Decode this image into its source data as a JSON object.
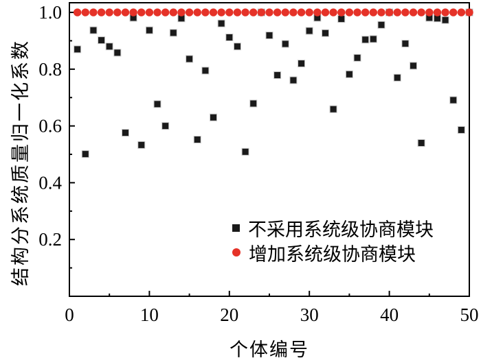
{
  "axes": {
    "x_title": "个体编号",
    "y_title": "结构分系统质量归一化系数"
  },
  "legend": {
    "series1": "不采用系统级协商模块",
    "series2": "增加系统级协商模块"
  },
  "colors": {
    "black_marker": "#1a1a1a",
    "red_marker": "#e53228",
    "axis": "#000000",
    "background": "#ffffff"
  },
  "chart_data": {
    "type": "scatter",
    "title": "",
    "xlabel": "个体编号",
    "ylabel": "结构分系统质量归一化系数",
    "xlim": [
      0,
      50
    ],
    "ylim": [
      0,
      1.034
    ],
    "grid": false,
    "legend_position": "inside lower-right",
    "x_major_ticks": [
      0,
      10,
      20,
      30,
      40,
      50
    ],
    "x_minor_ticks": [
      5,
      15,
      25,
      35,
      45
    ],
    "y_major_ticks": [
      0.2,
      0.4,
      0.6,
      0.8,
      1.0
    ],
    "y_minor_ticks": [
      0.1,
      0.3,
      0.5,
      0.7,
      0.9
    ],
    "x": [
      1,
      2,
      3,
      4,
      5,
      6,
      7,
      8,
      9,
      10,
      11,
      12,
      13,
      14,
      15,
      16,
      17,
      18,
      19,
      20,
      21,
      22,
      23,
      24,
      25,
      26,
      27,
      28,
      29,
      30,
      31,
      32,
      33,
      34,
      35,
      36,
      37,
      38,
      39,
      40,
      41,
      42,
      43,
      44,
      45,
      46,
      47,
      48,
      49,
      50
    ],
    "series": [
      {
        "name": "不采用系统级协商模块",
        "marker": "square",
        "color": "#1a1a1a",
        "values": [
          0.87,
          0.501,
          0.937,
          0.902,
          0.88,
          0.858,
          0.576,
          0.981,
          0.533,
          0.937,
          0.677,
          0.6,
          0.928,
          0.979,
          0.836,
          0.552,
          0.795,
          0.63,
          0.961,
          0.912,
          0.88,
          0.509,
          0.679,
          1.0,
          0.919,
          0.779,
          0.889,
          0.761,
          0.82,
          0.935,
          0.981,
          0.927,
          0.659,
          0.977,
          0.782,
          0.84,
          0.904,
          0.906,
          0.956,
          1.0,
          0.77,
          0.89,
          0.812,
          0.54,
          0.981,
          0.979,
          0.973,
          0.691,
          0.586,
          1.0
        ]
      },
      {
        "name": "增加系统级协商模块",
        "marker": "circle",
        "color": "#e53228",
        "values": [
          1.0,
          1.0,
          1.0,
          1.0,
          1.0,
          1.0,
          1.0,
          1.0,
          1.0,
          1.0,
          1.0,
          1.0,
          1.0,
          1.0,
          1.0,
          1.0,
          1.0,
          1.0,
          1.0,
          1.0,
          1.0,
          1.0,
          1.0,
          1.0,
          1.0,
          1.0,
          1.0,
          1.0,
          1.0,
          1.0,
          1.0,
          1.0,
          1.0,
          1.0,
          1.0,
          1.0,
          1.0,
          1.0,
          1.0,
          1.0,
          1.0,
          1.0,
          1.0,
          1.0,
          1.0,
          1.0,
          1.0,
          1.0,
          1.0,
          1.0
        ]
      }
    ]
  }
}
